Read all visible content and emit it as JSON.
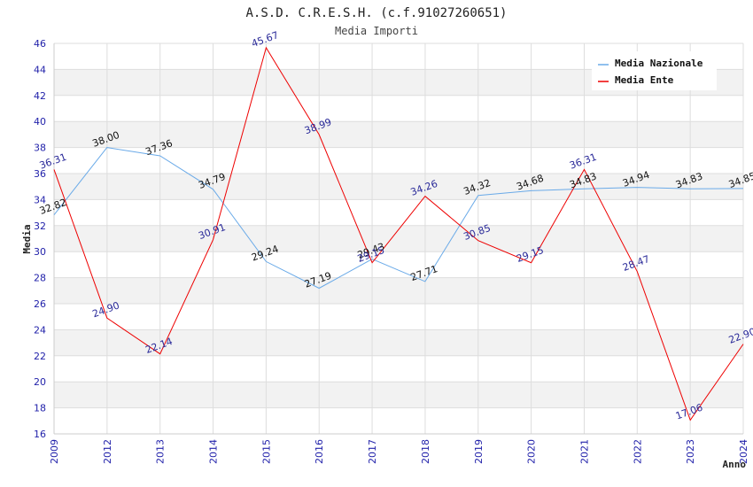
{
  "chart_data": {
    "type": "line",
    "title": "A.S.D. C.R.E.S.H. (c.f.91027260651)",
    "subtitle": "Media Importi",
    "xlabel": "Anno",
    "ylabel": "Media",
    "ylim": [
      16,
      46
    ],
    "yticks": [
      16,
      18,
      20,
      22,
      24,
      26,
      28,
      30,
      32,
      34,
      36,
      38,
      40,
      42,
      44,
      46
    ],
    "categories": [
      "2009",
      "2012",
      "2013",
      "2014",
      "2015",
      "2016",
      "2017",
      "2018",
      "2019",
      "2020",
      "2021",
      "2022",
      "2023",
      "2024"
    ],
    "series": [
      {
        "name": "Media Nazionale",
        "color": "#6aaae8",
        "values": [
          32.82,
          38.0,
          37.36,
          34.79,
          29.24,
          27.19,
          29.43,
          27.71,
          34.32,
          34.68,
          34.83,
          34.94,
          34.83,
          34.85
        ],
        "labels": [
          "32.82",
          "38.00",
          "37.36",
          "34.79",
          "29.24",
          "27.19",
          "29.43",
          "27.71",
          "34.32",
          "34.68",
          "34.83",
          "34.94",
          "34.83",
          "34.85"
        ]
      },
      {
        "name": "Media Ente",
        "color": "#ee0000",
        "values": [
          36.31,
          24.9,
          22.14,
          30.91,
          45.67,
          38.99,
          29.15,
          34.26,
          30.85,
          29.15,
          36.31,
          28.47,
          17.06,
          22.9
        ],
        "labels": [
          "36.31",
          "24.90",
          "22.14",
          "30.91",
          "45.67",
          "38.99",
          "29.15",
          "34.26",
          "30.85",
          "29.15",
          "36.31",
          "28.47",
          "17.06",
          "22.90"
        ]
      }
    ],
    "legend_position": "top-right",
    "grid": true
  }
}
